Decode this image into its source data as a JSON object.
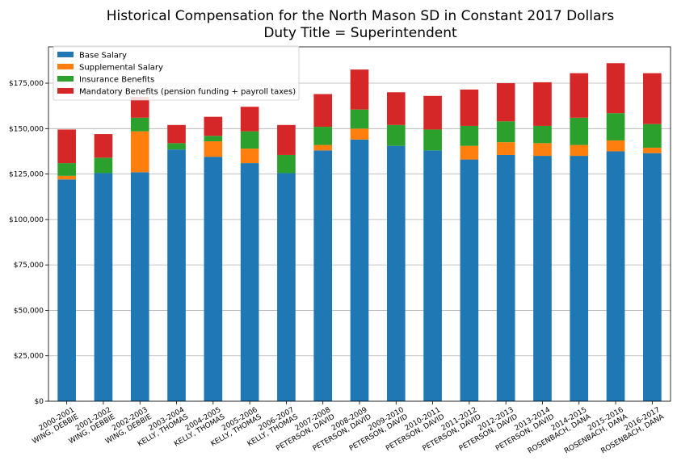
{
  "chart_data": {
    "type": "bar",
    "stacked": true,
    "title": "Historical Compensation for the North Mason SD in Constant 2017 Dollars",
    "subtitle": "Duty Title = Superintendent",
    "xlabel": "",
    "ylabel": "",
    "ylim": [
      0,
      195000
    ],
    "yticks": [
      0,
      25000,
      50000,
      75000,
      100000,
      125000,
      150000,
      175000
    ],
    "ytick_labels": [
      "$0",
      "$25,000",
      "$50,000",
      "$75,000",
      "$100,000",
      "$125,000",
      "$150,000",
      "$175,000"
    ],
    "grid": "horizontal",
    "legend_position": "top-left",
    "categories": [
      [
        "2000-2001",
        "WING, DEBBIE"
      ],
      [
        "2001-2002",
        "WING, DEBBIE"
      ],
      [
        "2002-2003",
        "WING, DEBBIE"
      ],
      [
        "2003-2004",
        "KELLY, THOMAS"
      ],
      [
        "2004-2005",
        "KELLY, THOMAS"
      ],
      [
        "2005-2006",
        "KELLY, THOMAS"
      ],
      [
        "2006-2007",
        "KELLY, THOMAS"
      ],
      [
        "2007-2008",
        "PETERSON, DAVID"
      ],
      [
        "2008-2009",
        "PETERSON, DAVID"
      ],
      [
        "2009-2010",
        "PETERSON, DAVID"
      ],
      [
        "2010-2011",
        "PETERSON, DAVID"
      ],
      [
        "2011-2012",
        "PETERSON, DAVID"
      ],
      [
        "2012-2013",
        "PETERSON, DAVID"
      ],
      [
        "2013-2014",
        "PETERSON, DAVID"
      ],
      [
        "2014-2015",
        "ROSENBACH, DANA"
      ],
      [
        "2015-2016",
        "ROSENBACH, DANA"
      ],
      [
        "2016-2017",
        "ROSENBACH, DANA"
      ]
    ],
    "series": [
      {
        "name": "Base Salary",
        "color": "#1f77b4",
        "values": [
          122000,
          125500,
          126000,
          138500,
          134500,
          131000,
          125500,
          138000,
          144000,
          140500,
          138000,
          133000,
          135500,
          135000,
          135000,
          137500,
          136500
        ]
      },
      {
        "name": "Supplemental Salary",
        "color": "#ff7f0e",
        "values": [
          2000,
          0,
          22500,
          0,
          8500,
          8000,
          0,
          3000,
          6000,
          0,
          0,
          7500,
          7000,
          7000,
          6000,
          6000,
          3000
        ]
      },
      {
        "name": "Insurance Benefits",
        "color": "#2ca02c",
        "values": [
          7000,
          8500,
          7500,
          3500,
          3000,
          9500,
          10000,
          10000,
          10500,
          11500,
          11500,
          11000,
          11500,
          9500,
          15000,
          15000,
          13000
        ]
      },
      {
        "name": "Mandatory Benefits (pension funding + payroll taxes)",
        "color": "#d62728",
        "values": [
          18500,
          13000,
          11500,
          10000,
          10500,
          13500,
          16500,
          18000,
          22000,
          18000,
          18500,
          20000,
          21000,
          24000,
          24500,
          27500,
          28000
        ]
      }
    ]
  }
}
